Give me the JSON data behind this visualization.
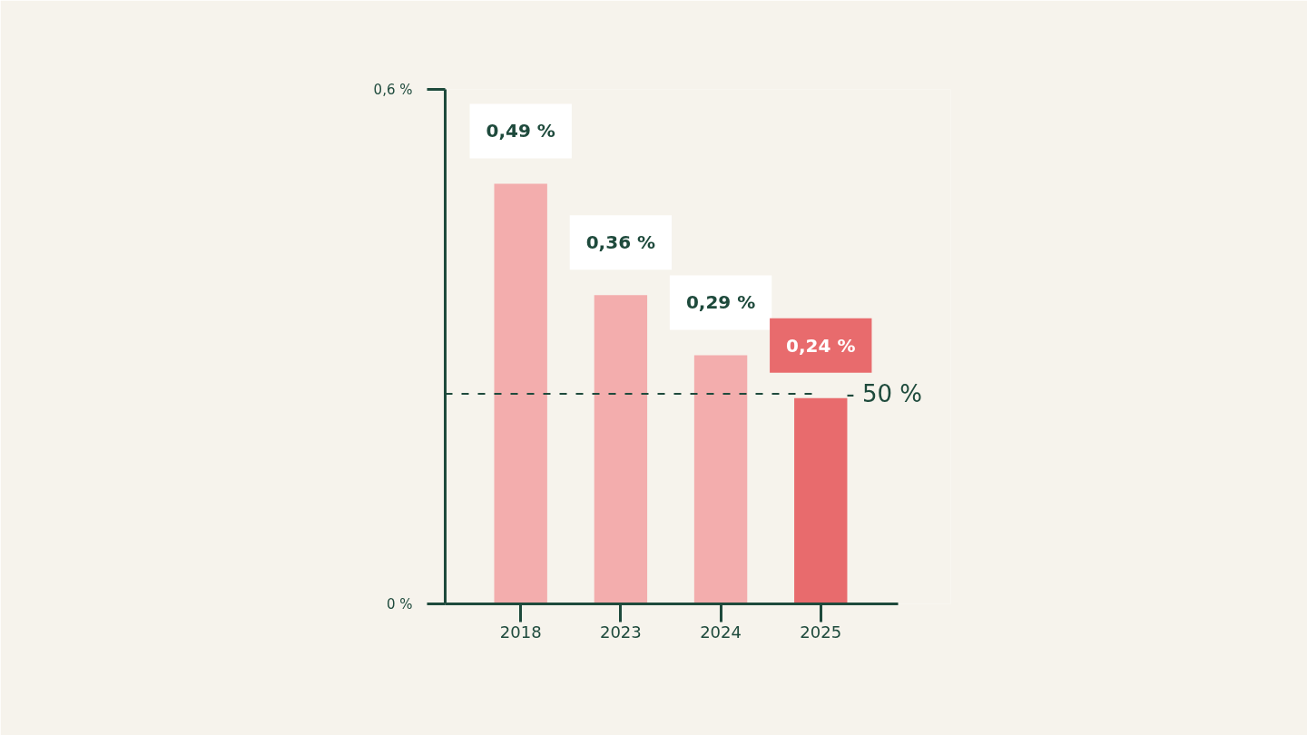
{
  "chart_data": {
    "type": "bar",
    "categories": [
      "2018",
      "2023",
      "2024",
      "2025"
    ],
    "values": [
      0.49,
      0.36,
      0.29,
      0.24
    ],
    "colors": [
      "#f3adad",
      "#f3adad",
      "#f3adad",
      "#e86b6d"
    ],
    "value_labels": [
      "0,49 %",
      "0,36 %",
      "0,29 %",
      "0,24 %"
    ],
    "ylim": [
      0,
      0.6
    ],
    "yticks": [
      {
        "value": 0,
        "label": "0 %"
      },
      {
        "value": 0.6,
        "label": "0,6 %"
      }
    ],
    "ref_lines": [
      {
        "axis": "y",
        "value": 0.245,
        "color": "#1e4a3c",
        "line_style": "dashed"
      }
    ],
    "annotations": [
      {
        "text": "- 50 %",
        "x": "2025",
        "y": 0.245
      }
    ],
    "grid": false
  }
}
